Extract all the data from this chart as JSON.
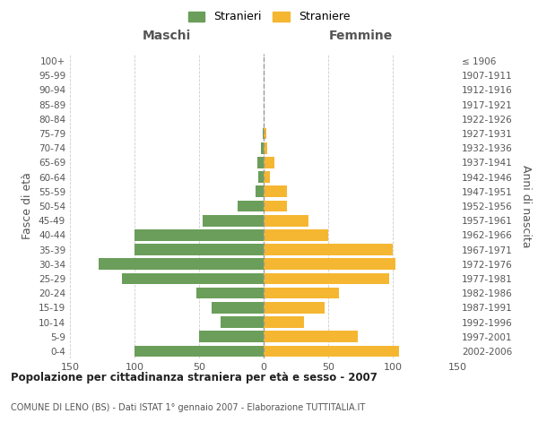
{
  "age_groups": [
    "0-4",
    "5-9",
    "10-14",
    "15-19",
    "20-24",
    "25-29",
    "30-34",
    "35-39",
    "40-44",
    "45-49",
    "50-54",
    "55-59",
    "60-64",
    "65-69",
    "70-74",
    "75-79",
    "80-84",
    "85-89",
    "90-94",
    "95-99",
    "100+"
  ],
  "birth_years": [
    "2002-2006",
    "1997-2001",
    "1992-1996",
    "1987-1991",
    "1982-1986",
    "1977-1981",
    "1972-1976",
    "1967-1971",
    "1962-1966",
    "1957-1961",
    "1952-1956",
    "1947-1951",
    "1942-1946",
    "1937-1941",
    "1932-1936",
    "1927-1931",
    "1922-1926",
    "1917-1921",
    "1912-1916",
    "1907-1911",
    "≤ 1906"
  ],
  "maschi": [
    100,
    50,
    33,
    40,
    52,
    110,
    128,
    100,
    100,
    47,
    20,
    6,
    4,
    5,
    2,
    1,
    0,
    0,
    0,
    0,
    0
  ],
  "femmine": [
    105,
    73,
    31,
    47,
    58,
    97,
    102,
    100,
    50,
    35,
    18,
    18,
    5,
    8,
    3,
    2,
    0,
    0,
    0,
    0,
    0
  ],
  "color_maschi": "#6a9e5a",
  "color_femmine": "#f5b731",
  "background_color": "#ffffff",
  "grid_color": "#cccccc",
  "title": "Popolazione per cittadinanza straniera per età e sesso - 2007",
  "subtitle": "COMUNE DI LENO (BS) - Dati ISTAT 1° gennaio 2007 - Elaborazione TUTTITALIA.IT",
  "xlabel_left": "Maschi",
  "xlabel_right": "Femmine",
  "ylabel_left": "Fasce di età",
  "ylabel_right": "Anni di nascita",
  "legend_maschi": "Stranieri",
  "legend_femmine": "Straniere",
  "xlim": 150
}
